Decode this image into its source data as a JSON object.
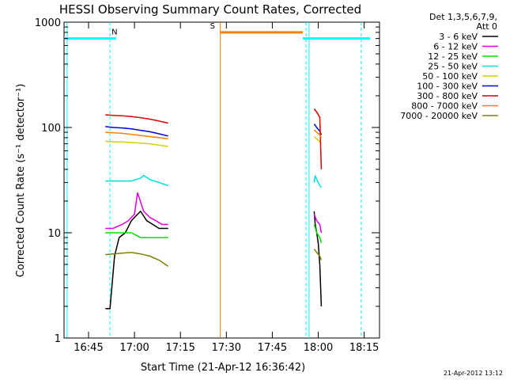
{
  "chart_data": {
    "type": "line",
    "title": "HESSI Observing Summary Count Rates, Corrected",
    "xlabel": "Start Time (21-Apr-12 16:36:42)",
    "ylabel": "Corrected Count Rate (s⁻¹ detector⁻¹)",
    "yscale": "log",
    "ylim": [
      1,
      1000
    ],
    "xlim": [
      "16:37",
      "18:20"
    ],
    "x_ticks": [
      "16:45",
      "17:00",
      "17:15",
      "17:30",
      "17:45",
      "18:00",
      "18:15"
    ],
    "y_ticks": [
      "1",
      "10",
      "100",
      "1000"
    ],
    "legend_header": [
      "Det 1,3,5,6,7,9,",
      "Att 0"
    ],
    "legend_position": "right",
    "timestamp": "21-Apr-2012 13:12",
    "series": [
      {
        "name": "3 - 6 keV",
        "color": "#000000",
        "segments": [
          {
            "t": [
              "16:50:30",
              "16:52",
              "16:53:30",
              "16:55",
              "16:57",
              "16:59",
              "17:00",
              "17:02",
              "17:04",
              "17:06",
              "17:08",
              "17:11"
            ],
            "v": [
              1.9,
              1.9,
              6,
              9,
              10,
              13,
              14,
              16,
              13,
              12,
              11,
              11
            ]
          },
          {
            "t": [
              "17:58:40",
              "17:59",
              "17:59:30",
              "18:00",
              "18:00:30",
              "18:01"
            ],
            "v": [
              16,
              12,
              10,
              8,
              5,
              2
            ]
          }
        ]
      },
      {
        "name": "6 - 12 keV",
        "color": "#e000e0",
        "segments": [
          {
            "t": [
              "16:50:30",
              "16:53",
              "16:56",
              "16:58",
              "17:00",
              "17:01",
              "17:03",
              "17:05",
              "17:07",
              "17:09",
              "17:11"
            ],
            "v": [
              11,
              11,
              12,
              13,
              15,
              24,
              16,
              14,
              13,
              12,
              12
            ]
          },
          {
            "t": [
              "17:58:40",
              "17:59:30",
              "18:00:30",
              "18:01"
            ],
            "v": [
              15,
              13,
              12,
              10
            ]
          }
        ]
      },
      {
        "name": "12 - 25 keV",
        "color": "#00e000",
        "segments": [
          {
            "t": [
              "16:50:30",
              "16:53",
              "16:56",
              "16:59",
              "17:02",
              "17:05",
              "17:08",
              "17:11"
            ],
            "v": [
              10,
              10,
              10,
              10,
              9,
              9,
              9,
              9
            ]
          },
          {
            "t": [
              "17:58:40",
              "17:59:30",
              "18:00:30",
              "18:01"
            ],
            "v": [
              12,
              10,
              9,
              8
            ]
          }
        ]
      },
      {
        "name": "25 - 50 keV",
        "color": "#00e0e0",
        "segments": [
          {
            "t": [
              "16:50:30",
              "16:53",
              "16:56",
              "16:59",
              "17:02",
              "17:03",
              "17:05",
              "17:08",
              "17:11"
            ],
            "v": [
              31,
              31,
              31,
              31,
              33,
              35,
              32,
              30,
              28
            ]
          },
          {
            "t": [
              "17:58:40",
              "17:59",
              "17:59:30",
              "18:00",
              "18:00:30",
              "18:01"
            ],
            "v": [
              30,
              35,
              32,
              30,
              28,
              27
            ]
          }
        ]
      },
      {
        "name": "50 - 100 keV",
        "color": "#d0d000",
        "segments": [
          {
            "t": [
              "16:50:30",
              "16:53",
              "16:56",
              "16:59",
              "17:02",
              "17:05",
              "17:08",
              "17:11"
            ],
            "v": [
              74,
              73,
              73,
              72,
              71,
              70,
              68,
              66
            ]
          },
          {
            "t": [
              "17:58:40",
              "17:59:30",
              "18:00:30",
              "18:01"
            ],
            "v": [
              82,
              78,
              73,
              70
            ]
          }
        ]
      },
      {
        "name": "100 - 300 keV",
        "color": "#0000e0",
        "segments": [
          {
            "t": [
              "16:50:30",
              "16:53",
              "16:56",
              "16:59",
              "17:02",
              "17:05",
              "17:08",
              "17:11"
            ],
            "v": [
              102,
              100,
              99,
              97,
              94,
              91,
              87,
              83
            ]
          },
          {
            "t": [
              "17:58:40",
              "17:59:30",
              "18:00:30",
              "18:01"
            ],
            "v": [
              108,
              100,
              92,
              85
            ]
          }
        ]
      },
      {
        "name": "300 - 800 keV",
        "color": "#e00000",
        "segments": [
          {
            "t": [
              "16:50:30",
              "16:53",
              "16:56",
              "16:59",
              "17:02",
              "17:05",
              "17:08",
              "17:11"
            ],
            "v": [
              132,
              130,
              129,
              127,
              124,
              120,
              115,
              110
            ]
          },
          {
            "t": [
              "17:58:40",
              "17:59:30",
              "18:00:30",
              "18:01"
            ],
            "v": [
              150,
              140,
              125,
              40
            ]
          }
        ]
      },
      {
        "name": "800 - 7000 keV",
        "color": "#ff8000",
        "segments": [
          {
            "t": [
              "16:50:30",
              "16:53",
              "16:56",
              "16:59",
              "17:02",
              "17:05",
              "17:08",
              "17:11"
            ],
            "v": [
              90,
              89,
              88,
              86,
              84,
              82,
              80,
              78
            ]
          },
          {
            "t": [
              "17:58:40",
              "17:59:30",
              "18:00:30",
              "18:01"
            ],
            "v": [
              95,
              90,
              85,
              80
            ]
          }
        ]
      },
      {
        "name": "7000 - 20000 keV",
        "color": "#808000",
        "segments": [
          {
            "t": [
              "16:50:30",
              "16:53",
              "16:56",
              "16:59",
              "17:02",
              "17:05",
              "17:08",
              "17:11"
            ],
            "v": [
              6.2,
              6.3,
              6.4,
              6.5,
              6.3,
              6.0,
              5.5,
              4.8
            ]
          },
          {
            "t": [
              "17:58:40",
              "17:59:30",
              "18:00:30",
              "18:01"
            ],
            "v": [
              7,
              6.5,
              6,
              5.5
            ]
          }
        ]
      }
    ],
    "flag_bars": [
      {
        "color": "#00ffff",
        "label": "",
        "start": "16:37",
        "end": "16:52",
        "level": 700
      },
      {
        "color": "#00ffff",
        "label": "N",
        "start": "16:52",
        "end": "16:54",
        "level": 700
      },
      {
        "color": "#ff8000",
        "label": "S",
        "start": "17:28",
        "end": "17:55",
        "level": 800
      },
      {
        "color": "#00ffff",
        "label": "",
        "start": "17:55",
        "end": "17:59",
        "level": 700
      },
      {
        "color": "#00ffff",
        "label": "",
        "start": "17:59",
        "end": "18:17",
        "level": 700
      }
    ],
    "vertical_markers": [
      {
        "time": "16:52",
        "color": "#00ffff",
        "style": "dashed"
      },
      {
        "time": "17:28",
        "color": "#ff8000",
        "style": "solid"
      },
      {
        "time": "17:56",
        "color": "#00ffff",
        "style": "dashed"
      },
      {
        "time": "17:57",
        "color": "#00ffff",
        "style": "solid"
      },
      {
        "time": "18:14",
        "color": "#00ffff",
        "style": "dashed"
      },
      {
        "time": "16:38",
        "color": "#00ffff",
        "style": "solid"
      }
    ]
  }
}
